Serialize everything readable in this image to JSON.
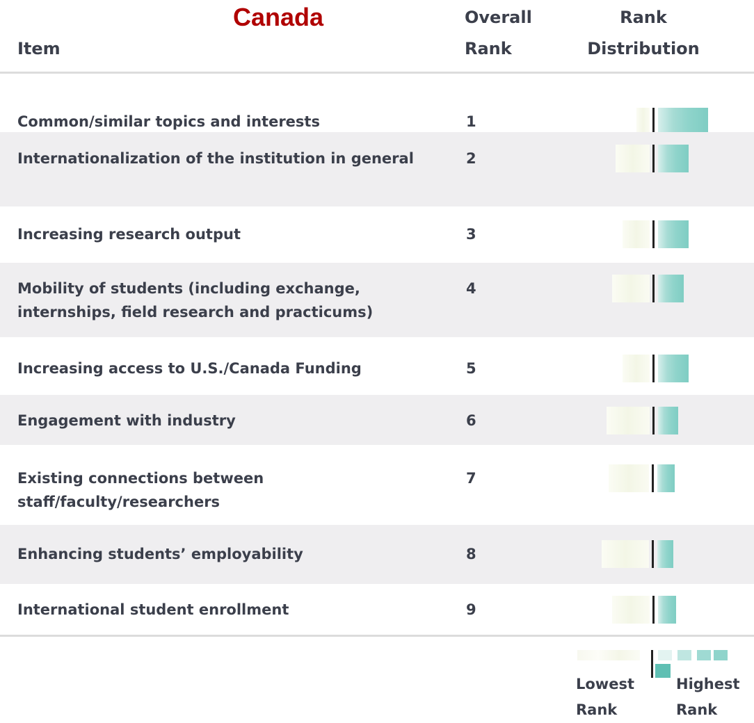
{
  "title": "Canada",
  "table": {
    "headers": [
      "Item",
      "Overall Rank",
      "Rank Distribution"
    ],
    "rows": [
      [
        "Common/similar topics and interests",
        "1"
      ],
      [
        "Internationalization of the institution in general",
        "2"
      ],
      [
        "Increasing research output",
        "3"
      ],
      [
        "Mobility of students (including exchange, internships, field research and practicums)",
        "4"
      ],
      [
        "Increasing access to U.S./Canada Funding",
        "5"
      ],
      [
        "Engagement with industry",
        "6"
      ],
      [
        "Existing connections between staff/faculty/researchers",
        "7"
      ],
      [
        "Enhancing students’ employability",
        "8"
      ],
      [
        "International student enrollment",
        "9"
      ]
    ]
  },
  "legend": {
    "low": "Lowest Rank",
    "high": "Highest Rank"
  }
}
